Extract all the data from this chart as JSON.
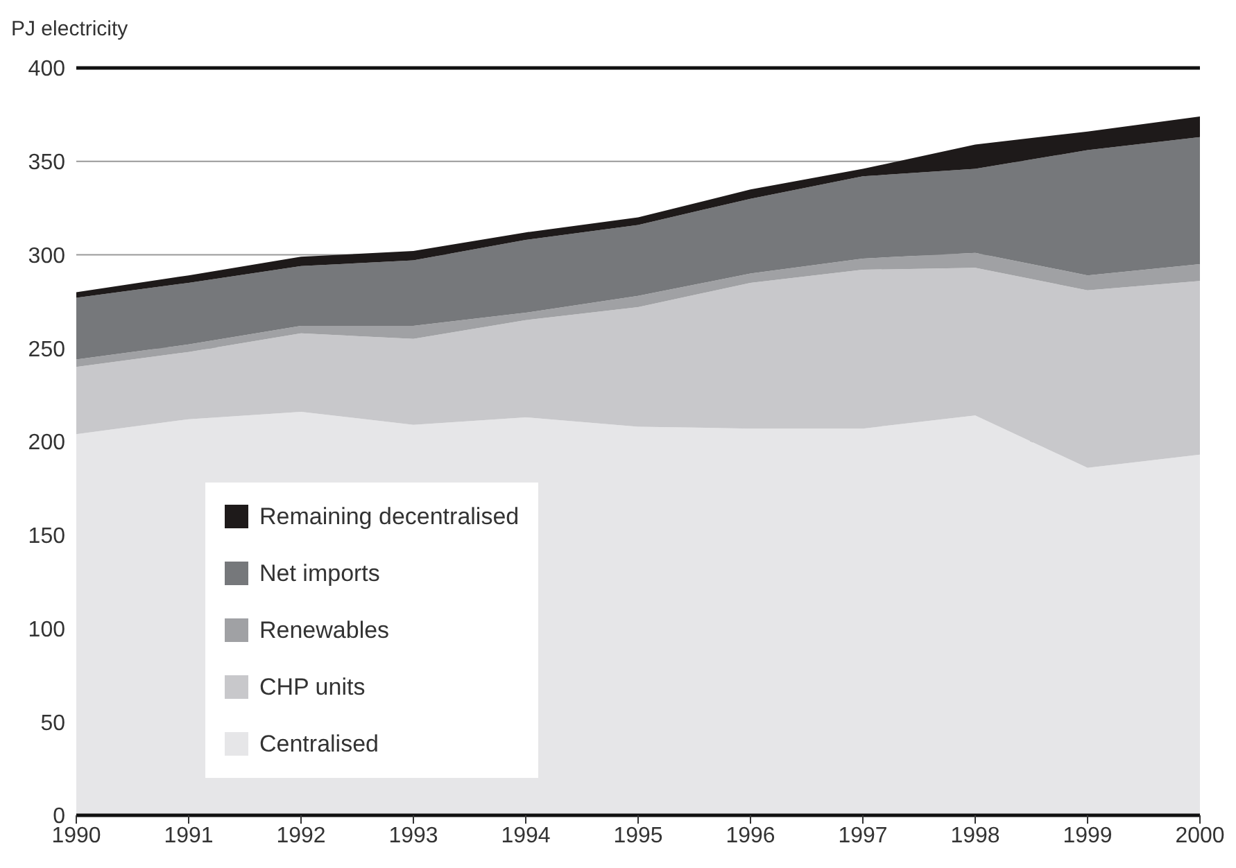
{
  "chart_data": {
    "type": "area",
    "stacked": true,
    "ylabel": "PJ electricity",
    "x": [
      1990,
      1991,
      1992,
      1993,
      1994,
      1995,
      1996,
      1997,
      1998,
      1999,
      2000
    ],
    "xlim": [
      1990,
      2000
    ],
    "xticks": [
      1990,
      1991,
      1992,
      1993,
      1994,
      1995,
      1996,
      1997,
      1998,
      1999,
      2000
    ],
    "ylim": [
      0,
      400
    ],
    "yticks": [
      0,
      50,
      100,
      150,
      200,
      250,
      300,
      350,
      400
    ],
    "grid": "y",
    "legend": "bottom left",
    "series": [
      {
        "name": "Centralised",
        "color": "#e6e6e8",
        "values": [
          204,
          212,
          216,
          209,
          213,
          208,
          207,
          207,
          214,
          186,
          193
        ]
      },
      {
        "name": "CHP units",
        "color": "#c8c8cb",
        "values": [
          36,
          36,
          42,
          46,
          52,
          64,
          78,
          85,
          79,
          95,
          93
        ]
      },
      {
        "name": "Renewables",
        "color": "#a0a1a4",
        "values": [
          4,
          4,
          4,
          7,
          4,
          6,
          5,
          6,
          8,
          8,
          9
        ]
      },
      {
        "name": "Net imports",
        "color": "#76787b",
        "values": [
          33,
          33,
          32,
          35,
          39,
          38,
          40,
          44,
          45,
          67,
          68
        ]
      },
      {
        "name": "Remaining decentralised",
        "color": "#1e1a1a",
        "values": [
          3,
          4,
          5,
          5,
          4,
          4,
          5,
          4,
          13,
          10,
          11
        ]
      }
    ]
  }
}
